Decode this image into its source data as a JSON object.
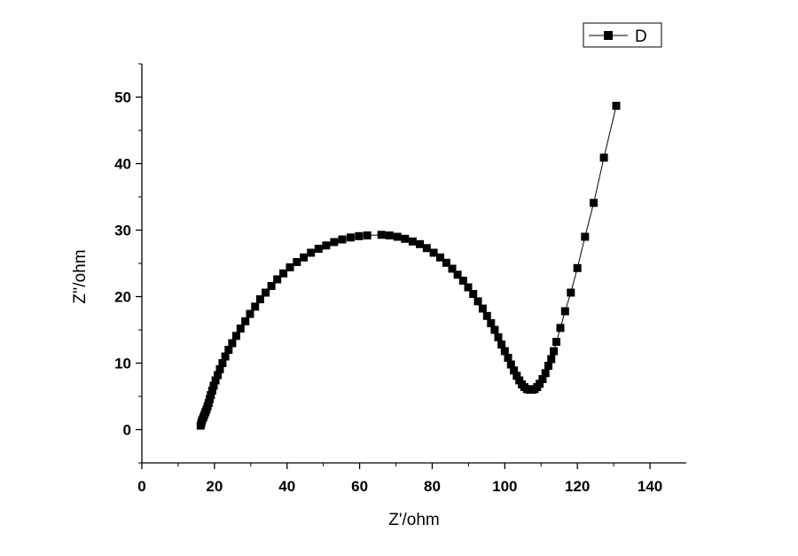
{
  "chart_data": {
    "type": "scatter",
    "title": "",
    "xlabel": "Z'/ohm",
    "ylabel": "Z''/ohm",
    "xlim": [
      0,
      150
    ],
    "ylim": [
      -5,
      55
    ],
    "x_ticks": [
      0,
      20,
      40,
      60,
      80,
      100,
      120,
      140
    ],
    "x_tick_labels": [
      "0",
      "20",
      "40",
      "60",
      "80",
      "100",
      "120",
      "140"
    ],
    "y_ticks": [
      0,
      10,
      20,
      30,
      40,
      50
    ],
    "y_tick_labels": [
      "0",
      "10",
      "20",
      "30",
      "40",
      "50"
    ],
    "grid": false,
    "legend_position": "top-right",
    "marker": "square",
    "connected": true,
    "color": "#000000",
    "series": [
      {
        "name": "D",
        "points": [
          [
            16.2,
            0.6
          ],
          [
            16.4,
            1.0
          ],
          [
            16.6,
            1.4
          ],
          [
            16.9,
            1.8
          ],
          [
            17.2,
            2.2
          ],
          [
            17.5,
            2.6
          ],
          [
            17.8,
            3.0
          ],
          [
            18.1,
            3.5
          ],
          [
            18.4,
            4.0
          ],
          [
            18.7,
            4.6
          ],
          [
            19.0,
            5.2
          ],
          [
            19.4,
            5.9
          ],
          [
            19.8,
            6.6
          ],
          [
            20.3,
            7.4
          ],
          [
            20.9,
            8.2
          ],
          [
            21.5,
            9.1
          ],
          [
            22.2,
            10.0
          ],
          [
            23.0,
            11.0
          ],
          [
            23.9,
            12.0
          ],
          [
            24.9,
            13.0
          ],
          [
            26.0,
            14.1
          ],
          [
            27.2,
            15.2
          ],
          [
            28.5,
            16.3
          ],
          [
            29.8,
            17.4
          ],
          [
            31.2,
            18.5
          ],
          [
            32.6,
            19.6
          ],
          [
            34.1,
            20.6
          ],
          [
            35.7,
            21.6
          ],
          [
            37.3,
            22.6
          ],
          [
            39.0,
            23.5
          ],
          [
            40.8,
            24.4
          ],
          [
            42.7,
            25.2
          ],
          [
            44.6,
            25.9
          ],
          [
            46.6,
            26.6
          ],
          [
            48.7,
            27.2
          ],
          [
            50.8,
            27.7
          ],
          [
            53.0,
            28.2
          ],
          [
            55.2,
            28.6
          ],
          [
            57.5,
            28.9
          ],
          [
            59.8,
            29.1
          ],
          [
            62.1,
            29.2
          ],
          [
            66.0,
            29.3
          ],
          [
            68.2,
            29.2
          ],
          [
            70.4,
            29.0
          ],
          [
            72.5,
            28.7
          ],
          [
            74.6,
            28.3
          ],
          [
            76.6,
            27.9
          ],
          [
            78.5,
            27.3
          ],
          [
            80.4,
            26.6
          ],
          [
            82.2,
            25.9
          ],
          [
            83.9,
            25.1
          ],
          [
            85.5,
            24.2
          ],
          [
            87.0,
            23.3
          ],
          [
            88.5,
            22.4
          ],
          [
            89.9,
            21.4
          ],
          [
            91.3,
            20.4
          ],
          [
            92.6,
            19.3
          ],
          [
            93.9,
            18.2
          ],
          [
            95.1,
            17.1
          ],
          [
            96.2,
            16.0
          ],
          [
            97.2,
            15.0
          ],
          [
            98.2,
            13.9
          ],
          [
            99.1,
            12.8
          ],
          [
            100.0,
            11.8
          ],
          [
            100.9,
            10.8
          ],
          [
            101.7,
            9.8
          ],
          [
            102.5,
            8.9
          ],
          [
            103.3,
            8.1
          ],
          [
            104.0,
            7.4
          ],
          [
            104.7,
            6.8
          ],
          [
            105.4,
            6.4
          ],
          [
            106.1,
            6.1
          ],
          [
            106.8,
            6.0
          ],
          [
            107.5,
            6.0
          ],
          [
            108.2,
            6.1
          ],
          [
            108.9,
            6.4
          ],
          [
            109.6,
            6.9
          ],
          [
            110.4,
            7.6
          ],
          [
            111.2,
            8.5
          ],
          [
            112.0,
            9.6
          ],
          [
            112.8,
            10.6
          ],
          [
            113.5,
            11.8
          ],
          [
            114.2,
            13.2
          ],
          [
            115.3,
            15.3
          ],
          [
            116.6,
            17.8
          ],
          [
            118.2,
            20.6
          ],
          [
            120.0,
            24.3
          ],
          [
            122.1,
            29.0
          ],
          [
            124.5,
            34.1
          ],
          [
            127.3,
            40.9
          ],
          [
            130.7,
            48.7
          ]
        ]
      }
    ]
  }
}
